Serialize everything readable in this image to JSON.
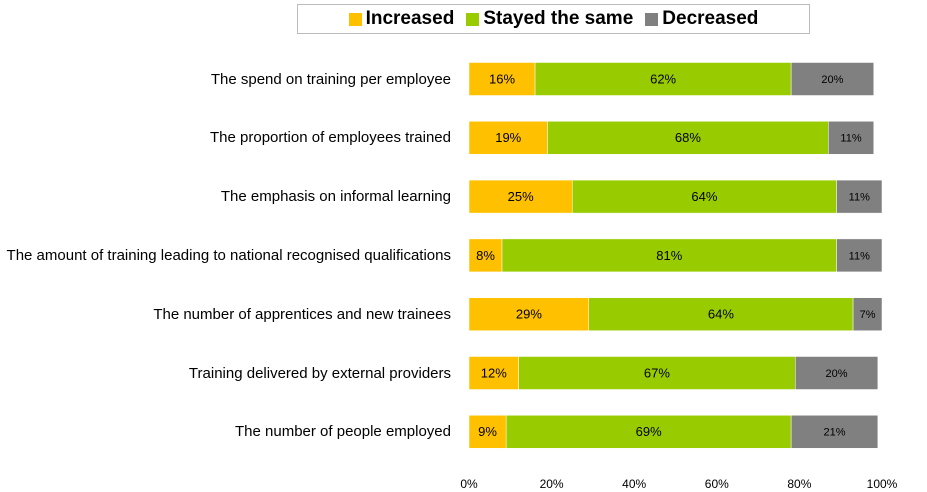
{
  "chart_data": {
    "type": "stacked-bar-horizontal",
    "categories": [
      "The spend on training per employee",
      "The proportion of employees trained",
      "The emphasis on informal learning",
      "The amount of training leading to national recognised qualifications",
      "The number of apprentices and new trainees",
      "Training delivered by external providers",
      "The number of people employed"
    ],
    "series": [
      {
        "name": "Increased",
        "color": "#ffc000",
        "values": [
          16,
          19,
          25,
          8,
          29,
          12,
          9
        ],
        "value_labels": [
          "16%",
          "19%",
          "25%",
          "8%",
          "29%",
          "12%",
          "9%"
        ]
      },
      {
        "name": "Stayed the same",
        "color": "#99cc00",
        "values": [
          62,
          68,
          64,
          81,
          64,
          67,
          69
        ],
        "value_labels": [
          "62%",
          "68%",
          "64%",
          "81%",
          "64%",
          "67%",
          "69%"
        ]
      },
      {
        "name": "Decreased",
        "color": "#808080",
        "values": [
          20,
          11,
          11,
          11,
          7,
          20,
          21
        ],
        "value_labels": [
          "20%",
          "11%",
          "11%",
          "11%",
          "7%",
          "20%",
          "21%"
        ]
      }
    ],
    "xlim": [
      0,
      100
    ],
    "xticks": [
      {
        "value": 0,
        "label": "0%"
      },
      {
        "value": 20,
        "label": "20%"
      },
      {
        "value": 40,
        "label": "40%"
      },
      {
        "value": 60,
        "label": "60%"
      },
      {
        "value": 80,
        "label": "80%"
      },
      {
        "value": 100,
        "label": "100%"
      }
    ],
    "legend": "top"
  }
}
